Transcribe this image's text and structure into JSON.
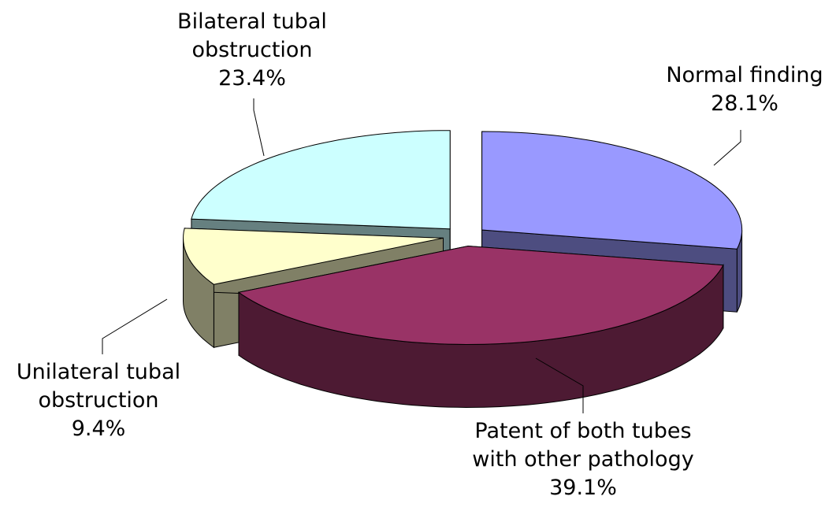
{
  "chart_data": {
    "type": "pie3d",
    "categories": [
      "Normal finding",
      "Patent of both tubes with other pathology",
      "Unilateral tubal obstruction",
      "Bilateral tubal obstruction"
    ],
    "values": [
      28.1,
      39.1,
      9.4,
      23.4
    ],
    "value_labels": [
      "28.1%",
      "39.1%",
      "9.4%",
      "23.4%"
    ],
    "colors": [
      "#9999ff",
      "#993366",
      "#ffffcc",
      "#ccffff"
    ]
  }
}
